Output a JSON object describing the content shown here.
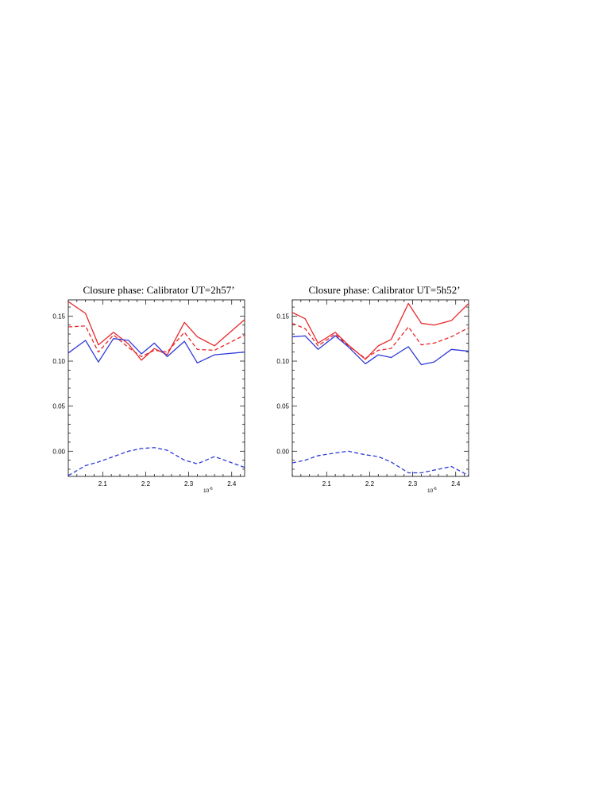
{
  "colors": {
    "red": "#e8282b",
    "blue": "#2e3ad8",
    "axis": "#000000"
  },
  "chart_data": [
    {
      "type": "line",
      "title": "Closure phase: Calibrator UT=2h57’",
      "x_exponent_label": "10",
      "x_exponent_power": "-6",
      "xlim": [
        2.02,
        2.43
      ],
      "ylim": [
        -0.028,
        0.168
      ],
      "x_ticks": [
        2.1,
        2.2,
        2.3,
        2.4
      ],
      "x_tick_labels": [
        "2.1",
        "2.2",
        "2.3",
        "2.4"
      ],
      "y_ticks": [
        0.0,
        0.05,
        0.1,
        0.15
      ],
      "y_tick_labels": [
        "0.00",
        "0.05",
        "0.10",
        "0.15"
      ],
      "x": [
        2.02,
        2.06,
        2.09,
        2.125,
        2.16,
        2.19,
        2.22,
        2.25,
        2.29,
        2.32,
        2.36,
        2.43
      ],
      "series": [
        {
          "color": "red",
          "dash": "solid",
          "values": [
            0.166,
            0.153,
            0.118,
            0.132,
            0.119,
            0.101,
            0.114,
            0.107,
            0.143,
            0.127,
            0.117,
            0.146
          ]
        },
        {
          "color": "red",
          "dash": "dashed",
          "values": [
            0.138,
            0.139,
            0.11,
            0.129,
            0.115,
            0.105,
            0.112,
            0.11,
            0.132,
            0.113,
            0.112,
            0.129
          ]
        },
        {
          "color": "blue",
          "dash": "solid",
          "values": [
            0.109,
            0.123,
            0.099,
            0.125,
            0.123,
            0.108,
            0.12,
            0.105,
            0.122,
            0.098,
            0.107,
            0.11
          ]
        },
        {
          "color": "blue",
          "dash": "dashed",
          "values": [
            -0.027,
            -0.016,
            -0.012,
            -0.006,
            0.0,
            0.003,
            0.004,
            0.001,
            -0.01,
            -0.014,
            -0.006,
            -0.018
          ]
        }
      ]
    },
    {
      "type": "line",
      "title": "Closure phase: Calibrator UT=5h52’",
      "x_exponent_label": "10",
      "x_exponent_power": "-6",
      "xlim": [
        2.02,
        2.43
      ],
      "ylim": [
        -0.028,
        0.168
      ],
      "x_ticks": [
        2.1,
        2.2,
        2.3,
        2.4
      ],
      "x_tick_labels": [
        "2.1",
        "2.2",
        "2.3",
        "2.4"
      ],
      "y_ticks": [
        0.0,
        0.05,
        0.1,
        0.15
      ],
      "y_tick_labels": [
        "0.00",
        "0.05",
        "0.10",
        "0.15"
      ],
      "x": [
        2.02,
        2.05,
        2.08,
        2.12,
        2.15,
        2.19,
        2.22,
        2.25,
        2.29,
        2.32,
        2.35,
        2.39,
        2.43
      ],
      "series": [
        {
          "color": "red",
          "dash": "solid",
          "values": [
            0.154,
            0.147,
            0.12,
            0.132,
            0.118,
            0.102,
            0.117,
            0.124,
            0.164,
            0.142,
            0.14,
            0.145,
            0.164
          ]
        },
        {
          "color": "red",
          "dash": "dashed",
          "values": [
            0.142,
            0.136,
            0.117,
            0.13,
            0.117,
            0.103,
            0.112,
            0.114,
            0.138,
            0.118,
            0.12,
            0.127,
            0.137
          ]
        },
        {
          "color": "blue",
          "dash": "solid",
          "values": [
            0.127,
            0.128,
            0.113,
            0.128,
            0.116,
            0.097,
            0.107,
            0.104,
            0.116,
            0.096,
            0.099,
            0.113,
            0.111
          ]
        },
        {
          "color": "blue",
          "dash": "dashed",
          "values": [
            -0.013,
            -0.01,
            -0.005,
            -0.002,
            0.0,
            -0.004,
            -0.006,
            -0.012,
            -0.024,
            -0.024,
            -0.021,
            -0.017,
            -0.027
          ]
        }
      ]
    }
  ]
}
